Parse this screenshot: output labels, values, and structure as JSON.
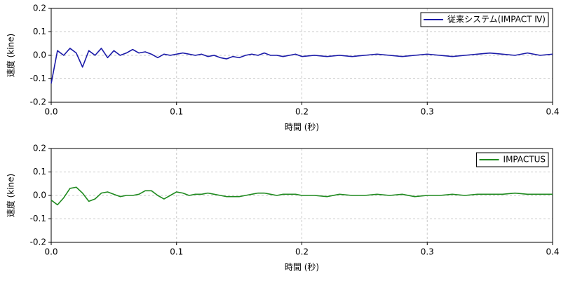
{
  "chart_data": [
    {
      "type": "line",
      "xlabel": "時間 (秒)",
      "ylabel": "速度 (kine)",
      "x": [
        0,
        0.005,
        0.01,
        0.015,
        0.02,
        0.025,
        0.03,
        0.035,
        0.04,
        0.045,
        0.05,
        0.055,
        0.06,
        0.065,
        0.07,
        0.075,
        0.08,
        0.085,
        0.09,
        0.095,
        0.1,
        0.105,
        0.11,
        0.115,
        0.12,
        0.125,
        0.13,
        0.135,
        0.14,
        0.145,
        0.15,
        0.155,
        0.16,
        0.165,
        0.17,
        0.175,
        0.18,
        0.185,
        0.19,
        0.195,
        0.2,
        0.21,
        0.22,
        0.23,
        0.24,
        0.25,
        0.26,
        0.27,
        0.28,
        0.29,
        0.3,
        0.31,
        0.32,
        0.33,
        0.34,
        0.35,
        0.36,
        0.37,
        0.38,
        0.39,
        0.4
      ],
      "series": [
        {
          "name": "従来システム(IMPACT Ⅳ)",
          "color": "#1a1aa8",
          "values": [
            -0.12,
            0.02,
            0.0,
            0.03,
            0.01,
            -0.05,
            0.02,
            0.0,
            0.03,
            -0.01,
            0.02,
            0.0,
            0.01,
            0.025,
            0.01,
            0.015,
            0.005,
            -0.01,
            0.005,
            0.0,
            0.005,
            0.01,
            0.005,
            0.0,
            0.005,
            -0.005,
            0.0,
            -0.01,
            -0.015,
            -0.005,
            -0.01,
            0.0,
            0.005,
            0.0,
            0.01,
            0.0,
            0.0,
            -0.005,
            0.0,
            0.005,
            -0.005,
            0.0,
            -0.005,
            0.0,
            -0.005,
            0.0,
            0.005,
            0.0,
            -0.005,
            0.0,
            0.005,
            0.0,
            -0.005,
            0.0,
            0.005,
            0.01,
            0.005,
            0.0,
            0.01,
            0.0,
            0.005
          ]
        }
      ],
      "xlim": [
        0,
        0.4
      ],
      "ylim": [
        -0.2,
        0.2
      ],
      "xticks": [
        {
          "value": 0,
          "label": "0.0"
        },
        0.1,
        0.2,
        0.3,
        0.4
      ],
      "yticks": [
        -0.2,
        -0.1,
        {
          "value": 0,
          "label": "0.0"
        },
        0.1,
        0.2
      ],
      "grid": true,
      "legend": "upper right"
    },
    {
      "type": "line",
      "xlabel": "時間 (秒)",
      "ylabel": "速度 (kine)",
      "x": [
        0,
        0.005,
        0.01,
        0.015,
        0.02,
        0.025,
        0.03,
        0.035,
        0.04,
        0.045,
        0.05,
        0.055,
        0.06,
        0.065,
        0.07,
        0.075,
        0.08,
        0.085,
        0.09,
        0.095,
        0.1,
        0.105,
        0.11,
        0.115,
        0.12,
        0.125,
        0.13,
        0.135,
        0.14,
        0.145,
        0.15,
        0.155,
        0.16,
        0.165,
        0.17,
        0.175,
        0.18,
        0.185,
        0.19,
        0.195,
        0.2,
        0.21,
        0.22,
        0.23,
        0.24,
        0.25,
        0.26,
        0.27,
        0.28,
        0.29,
        0.3,
        0.31,
        0.32,
        0.33,
        0.34,
        0.35,
        0.36,
        0.37,
        0.38,
        0.39,
        0.4
      ],
      "series": [
        {
          "name": "IMPACTUS",
          "color": "#1f8a1f",
          "values": [
            -0.02,
            -0.04,
            -0.01,
            0.03,
            0.035,
            0.01,
            -0.025,
            -0.015,
            0.01,
            0.015,
            0.005,
            -0.005,
            0.0,
            0.0,
            0.005,
            0.02,
            0.02,
            0.0,
            -0.015,
            0.0,
            0.015,
            0.01,
            0.0,
            0.005,
            0.005,
            0.01,
            0.005,
            0.0,
            -0.005,
            -0.005,
            -0.005,
            0.0,
            0.005,
            0.01,
            0.01,
            0.005,
            0.0,
            0.005,
            0.005,
            0.005,
            0.0,
            0.0,
            -0.005,
            0.005,
            0.0,
            0.0,
            0.005,
            0.0,
            0.005,
            -0.005,
            0.0,
            0.0,
            0.005,
            0.0,
            0.005,
            0.005,
            0.005,
            0.01,
            0.005,
            0.005,
            0.005
          ]
        }
      ],
      "xlim": [
        0,
        0.4
      ],
      "ylim": [
        -0.2,
        0.2
      ],
      "xticks": [
        {
          "value": 0,
          "label": "0.0"
        },
        0.1,
        0.2,
        0.3,
        0.4
      ],
      "yticks": [
        -0.2,
        -0.1,
        {
          "value": 0,
          "label": "0.0"
        },
        0.1,
        0.2
      ],
      "grid": true,
      "legend": "upper right"
    }
  ]
}
